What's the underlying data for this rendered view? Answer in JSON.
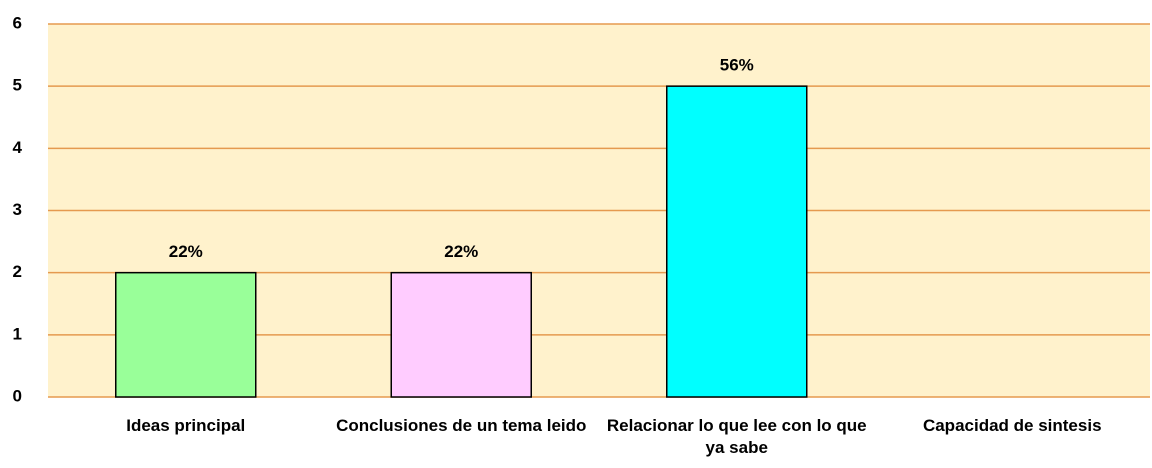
{
  "chart_data": {
    "type": "bar",
    "categories": [
      "Ideas principal",
      "Conclusiones de un tema leido",
      "Relacionar lo que lee con lo que ya sabe",
      "Capacidad de sintesis"
    ],
    "values": [
      2,
      2,
      5,
      0
    ],
    "value_labels": [
      "22%",
      "22%",
      "56%",
      null
    ],
    "colors": [
      "#99ff99",
      "#ffccff",
      "#00ffff",
      "#ffffff"
    ],
    "ylim": [
      0,
      6
    ],
    "yticks": [
      0,
      1,
      2,
      3,
      4,
      5,
      6
    ],
    "grid": true
  }
}
